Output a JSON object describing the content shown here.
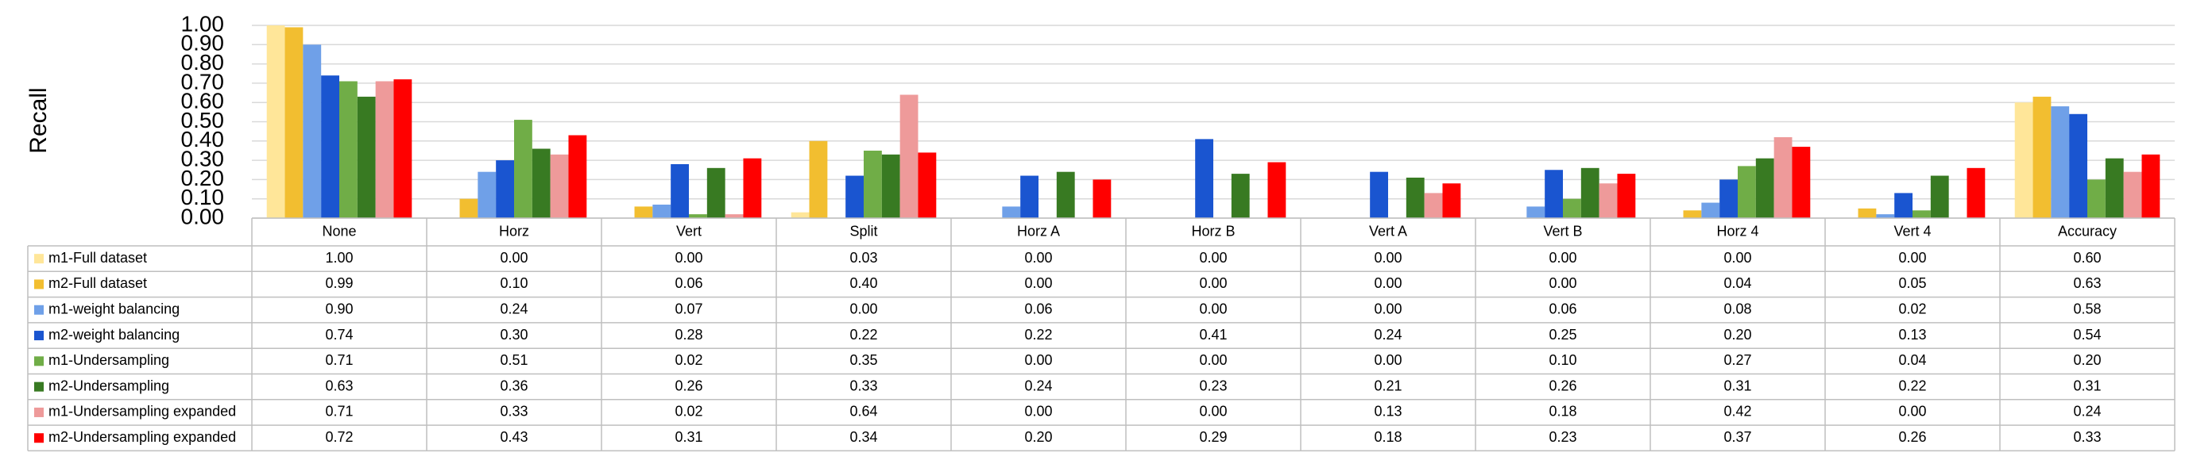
{
  "chart_data": {
    "type": "bar",
    "y_label": "Recall",
    "categories": [
      "None",
      "Horz",
      "Vert",
      "Split",
      "Horz A",
      "Horz B",
      "Vert A",
      "Vert B",
      "Horz 4",
      "Vert 4",
      "Accuracy"
    ],
    "ylim": [
      0,
      1
    ],
    "yticks": [
      {
        "value": 0,
        "label": "0.00"
      },
      {
        "value": 0.1,
        "label": "0.10"
      },
      {
        "value": 0.2,
        "label": "0.20"
      },
      {
        "value": 0.3,
        "label": "0.30"
      },
      {
        "value": 0.4,
        "label": "0.40"
      },
      {
        "value": 0.5,
        "label": "0.50"
      },
      {
        "value": 0.6,
        "label": "0.60"
      },
      {
        "value": 0.7,
        "label": "0.70"
      },
      {
        "value": 0.8,
        "label": "0.80"
      },
      {
        "value": 0.9,
        "label": "0.90"
      },
      {
        "value": 1,
        "label": "1.00"
      }
    ],
    "grid": true,
    "series": [
      {
        "name": "m1-Full dataset",
        "color": "#FFE699",
        "values": [
          1,
          0,
          0,
          0.03,
          0,
          0,
          0,
          0,
          0,
          0,
          0.6
        ],
        "value_labels": [
          "1.00",
          "0.00",
          "0.00",
          "0.03",
          "0.00",
          "0.00",
          "0.00",
          "0.00",
          "0.00",
          "0.00",
          "0.60"
        ]
      },
      {
        "name": "m2-Full dataset",
        "color": "#F2BE30",
        "values": [
          0.99,
          0.1,
          0.06,
          0.4,
          0,
          0,
          0,
          0,
          0.04,
          0.05,
          0.63
        ],
        "value_labels": [
          "0.99",
          "0.10",
          "0.06",
          "0.40",
          "0.00",
          "0.00",
          "0.00",
          "0.00",
          "0.04",
          "0.05",
          "0.63"
        ]
      },
      {
        "name": "m1-weight balancing",
        "color": "#6FA0E8",
        "values": [
          0.9,
          0.24,
          0.07,
          0,
          0.06,
          0,
          0,
          0.06,
          0.08,
          0.02,
          0.58
        ],
        "value_labels": [
          "0.90",
          "0.24",
          "0.07",
          "0.00",
          "0.06",
          "0.00",
          "0.00",
          "0.06",
          "0.08",
          "0.02",
          "0.58"
        ]
      },
      {
        "name": "m2-weight balancing",
        "color": "#1A55D0",
        "values": [
          0.74,
          0.3,
          0.28,
          0.22,
          0.22,
          0.41,
          0.24,
          0.25,
          0.2,
          0.13,
          0.54
        ],
        "value_labels": [
          "0.74",
          "0.30",
          "0.28",
          "0.22",
          "0.22",
          "0.41",
          "0.24",
          "0.25",
          "0.20",
          "0.13",
          "0.54"
        ]
      },
      {
        "name": "m1-Undersampling",
        "color": "#70AD47",
        "values": [
          0.71,
          0.51,
          0.02,
          0.35,
          0,
          0,
          0,
          0.1,
          0.27,
          0.04,
          0.2
        ],
        "value_labels": [
          "0.71",
          "0.51",
          "0.02",
          "0.35",
          "0.00",
          "0.00",
          "0.00",
          "0.10",
          "0.27",
          "0.04",
          "0.20"
        ]
      },
      {
        "name": "m2-Undersampling",
        "color": "#387A22",
        "values": [
          0.63,
          0.36,
          0.26,
          0.33,
          0.24,
          0.23,
          0.21,
          0.26,
          0.31,
          0.22,
          0.31
        ],
        "value_labels": [
          "0.63",
          "0.36",
          "0.26",
          "0.33",
          "0.24",
          "0.23",
          "0.21",
          "0.26",
          "0.31",
          "0.22",
          "0.31"
        ]
      },
      {
        "name": "m1-Undersampling expanded",
        "color": "#EE9A9A",
        "values": [
          0.71,
          0.33,
          0.02,
          0.64,
          0,
          0,
          0.13,
          0.18,
          0.42,
          0,
          0.24
        ],
        "value_labels": [
          "0.71",
          "0.33",
          "0.02",
          "0.64",
          "0.00",
          "0.00",
          "0.13",
          "0.18",
          "0.42",
          "0.00",
          "0.24"
        ]
      },
      {
        "name": "m2-Undersampling expanded",
        "color": "#FF0000",
        "values": [
          0.72,
          0.43,
          0.31,
          0.34,
          0.2,
          0.29,
          0.18,
          0.23,
          0.37,
          0.26,
          0.33
        ],
        "value_labels": [
          "0.72",
          "0.43",
          "0.31",
          "0.34",
          "0.20",
          "0.29",
          "0.18",
          "0.23",
          "0.37",
          "0.26",
          "0.33"
        ]
      }
    ]
  }
}
